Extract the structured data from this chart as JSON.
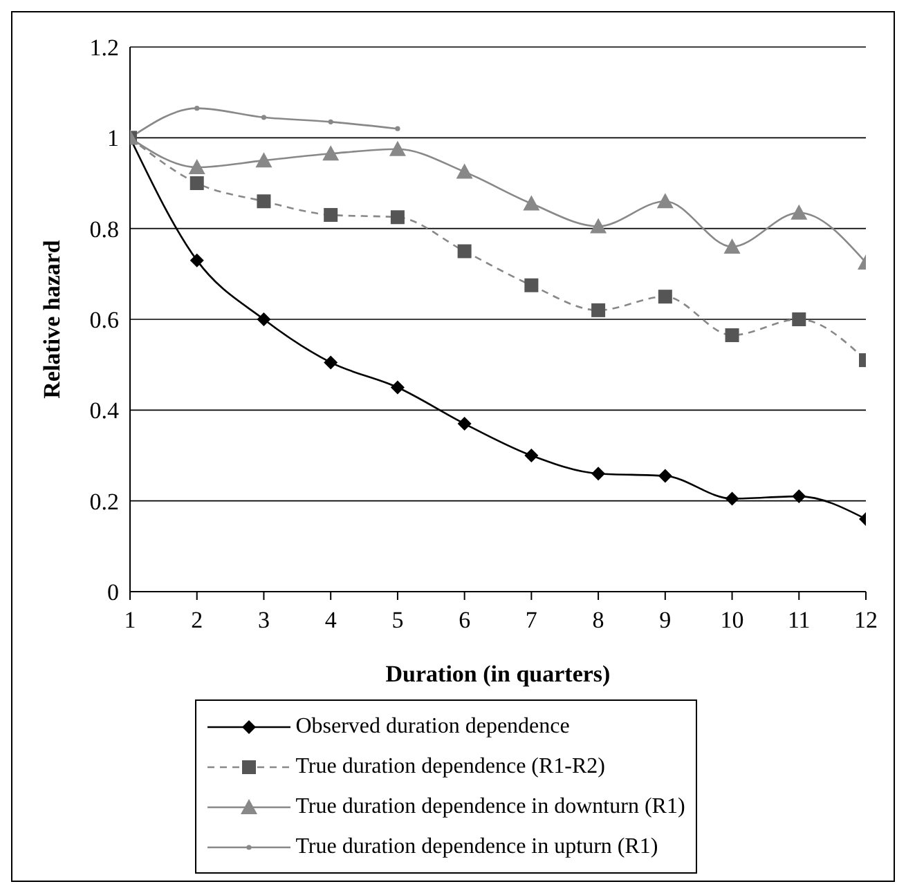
{
  "chart_data": {
    "type": "line",
    "xlabel": "Duration (in quarters)",
    "ylabel": "Relative hazard",
    "x": [
      1,
      2,
      3,
      4,
      5,
      6,
      7,
      8,
      9,
      10,
      11,
      12
    ],
    "xlim": [
      1,
      12
    ],
    "xticks": [
      1,
      2,
      3,
      4,
      5,
      6,
      7,
      8,
      9,
      10,
      11,
      12
    ],
    "ylim": [
      0,
      1.2
    ],
    "yticks": [
      0,
      0.2,
      0.4,
      0.6,
      0.8,
      1,
      1.2
    ],
    "grid": "y",
    "legend": "bottom",
    "series": [
      {
        "name": "Observed duration dependence",
        "color": "#000000",
        "marker": "diamond",
        "line_style": "solid",
        "values": [
          1,
          0.73,
          0.6,
          0.505,
          0.45,
          0.37,
          0.3,
          0.26,
          0.255,
          0.205,
          0.21,
          0.16
        ]
      },
      {
        "name": "True duration dependence (R1-R2)",
        "color": "#555555",
        "marker": "square",
        "line_style": "dashed",
        "values": [
          1,
          0.9,
          0.86,
          0.83,
          0.825,
          0.75,
          0.675,
          0.62,
          0.65,
          0.565,
          0.6,
          0.51
        ]
      },
      {
        "name": "True duration dependence in downturn (R1)",
        "color": "#888888",
        "marker": "triangle",
        "line_style": "solid",
        "values": [
          1,
          0.935,
          0.95,
          0.965,
          0.975,
          0.925,
          0.855,
          0.805,
          0.86,
          0.76,
          0.835,
          0.725
        ]
      },
      {
        "name": "True duration dependence in upturn (R1)",
        "color": "#888888",
        "marker": "circle",
        "line_style": "solid",
        "values": [
          1,
          1.065,
          1.045,
          1.035,
          1.02,
          null,
          null,
          null,
          null,
          null,
          null,
          null
        ]
      }
    ]
  }
}
